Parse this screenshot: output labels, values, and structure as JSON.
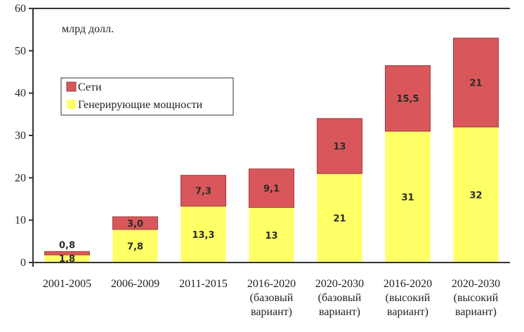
{
  "chart_data": {
    "type": "bar",
    "stacked": true,
    "unit_label": "млрд долл.",
    "categories": [
      [
        "2001-2005"
      ],
      [
        "2006-2009"
      ],
      [
        "2011-2015"
      ],
      [
        "2016-2020",
        "(базовый",
        "вариант)"
      ],
      [
        "2020-2030",
        "(базовый",
        "вариант)"
      ],
      [
        "2016-2020",
        "(высокий",
        "вариант)"
      ],
      [
        "2020-2030",
        "(высокий",
        "вариант)"
      ]
    ],
    "series": [
      {
        "name": "Генерирующие мощности",
        "color": "#ffff66",
        "values": [
          1.8,
          7.8,
          13.3,
          13,
          21,
          31,
          32
        ],
        "labels": [
          "1,8",
          "7,8",
          "13,3",
          "13",
          "21",
          "31",
          "32"
        ]
      },
      {
        "name": "Сети",
        "color": "#d9575a",
        "values": [
          0.8,
          3.0,
          7.3,
          9.1,
          13,
          15.5,
          21
        ],
        "labels": [
          "0,8",
          "3,0",
          "7,3",
          "9,1",
          "13",
          "15,5",
          "21"
        ]
      }
    ],
    "ylim": [
      0,
      60
    ],
    "yticks": [
      0,
      10,
      20,
      30,
      40,
      50,
      60
    ],
    "grid": false,
    "legend_position": "upper-left"
  }
}
